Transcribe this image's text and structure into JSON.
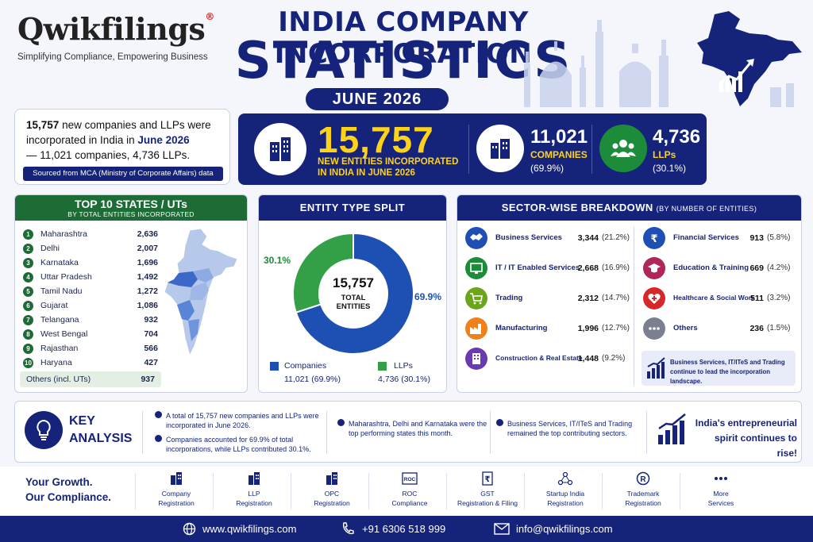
{
  "brand": {
    "logo": "Qwikfilings",
    "logo_mark": "®",
    "tagline": "Simplifying Compliance, Empowering Business"
  },
  "header": {
    "title_line1": "INDIA COMPANY INCORPORATION",
    "title_line2": "STATISTICS",
    "month": "JUNE 2026"
  },
  "summary": {
    "count": "15,757",
    "text_a": "new companies and LLPs were incorporated in India in",
    "month": "June 2026",
    "text_b": "— 11,021 companies, 4,736 LLPs.",
    "source": "Sourced from MCA (Ministry of Corporate Affairs) data"
  },
  "hero": {
    "total": "15,757",
    "total_label": "NEW ENTITIES INCORPORATED IN INDIA IN JUNE 2026",
    "companies_value": "11,021",
    "companies_label": "COMPANIES",
    "companies_pct": "(69.9%)",
    "llps_value": "4,736",
    "llps_label": "LLPs",
    "llps_pct": "(30.1%)"
  },
  "states_panel": {
    "title": "TOP 10 STATES / UTs",
    "subtitle": "BY TOTAL ENTITIES INCORPORATED",
    "others_label": "Others (incl. UTs)",
    "others_value": "937"
  },
  "entity_panel": {
    "title": "ENTITY TYPE SPLIT",
    "center_value": "15,757",
    "center_label_1": "TOTAL",
    "center_label_2": "ENTITIES",
    "companies_label": "Companies",
    "companies_detail": "11,021 (69.9%)",
    "llps_label": "LLPs",
    "llps_detail": "4,736 (30.1%)"
  },
  "sector_panel": {
    "title": "SECTOR-WISE BREAKDOWN",
    "title_note": "(BY NUMBER OF ENTITIES)",
    "note": "Business Services, IT/ITeS and Trading continue to lead the incorporation landscape."
  },
  "chart_data": [
    {
      "type": "bar",
      "title": "TOP 10 STATES / UTs",
      "subtitle": "BY TOTAL ENTITIES INCORPORATED",
      "categories": [
        "Maharashtra",
        "Delhi",
        "Karnataka",
        "Uttar Pradesh",
        "Tamil Nadu",
        "Gujarat",
        "Telangana",
        "West Bengal",
        "Rajasthan",
        "Haryana"
      ],
      "values": [
        2636,
        2007,
        1696,
        1492,
        1272,
        1086,
        932,
        704,
        566,
        427
      ],
      "value_labels": [
        "2,636",
        "2,007",
        "1,696",
        "1,492",
        "1,272",
        "1,086",
        "932",
        "704",
        "566",
        "427"
      ],
      "ranks": [
        "1",
        "2",
        "3",
        "4",
        "5",
        "6",
        "7",
        "8",
        "9",
        "10"
      ]
    },
    {
      "type": "pie",
      "title": "ENTITY TYPE SPLIT",
      "categories": [
        "Companies",
        "LLPs"
      ],
      "values": [
        11021,
        4736
      ],
      "percent_labels": [
        "69.9%",
        "30.1%"
      ],
      "colors": [
        "#1e50b4",
        "#33a047"
      ]
    },
    {
      "type": "table",
      "title": "SECTOR-WISE BREAKDOWN",
      "rows": [
        {
          "sector": "Business Services",
          "value": "3,344",
          "pct": "(21.2%)",
          "icon": "handshake-icon",
          "color": "#1e50b4"
        },
        {
          "sector": "IT / IT Enabled Services",
          "value": "2,668",
          "pct": "(16.9%)",
          "icon": "monitor-icon",
          "color": "#1d8c3a"
        },
        {
          "sector": "Trading",
          "value": "2,312",
          "pct": "(14.7%)",
          "icon": "cart-icon",
          "color": "#6aa51c"
        },
        {
          "sector": "Manufacturing",
          "value": "1,996",
          "pct": "(12.7%)",
          "icon": "factory-icon",
          "color": "#f0801a"
        },
        {
          "sector": "Construction & Real Estate",
          "value": "1,448",
          "pct": "(9.2%)",
          "icon": "building-icon",
          "color": "#6a3ab0"
        },
        {
          "sector": "Financial Services",
          "value": "913",
          "pct": "(5.8%)",
          "icon": "rupee-icon",
          "color": "#1e50b4"
        },
        {
          "sector": "Education & Training",
          "value": "669",
          "pct": "(4.2%)",
          "icon": "graduation-cap-icon",
          "color": "#b0255a"
        },
        {
          "sector": "Healthcare & Social Work",
          "value": "511",
          "pct": "(3.2%)",
          "icon": "heart-icon",
          "color": "#d62828"
        },
        {
          "sector": "Others",
          "value": "236",
          "pct": "(1.5%)",
          "icon": "dots-icon",
          "color": "#7a8090"
        }
      ]
    }
  ],
  "analysis": {
    "title_1": "KEY",
    "title_2": "ANALYSIS",
    "b1": "A total of 15,757 new companies and LLPs were incorporated in June 2026.",
    "b2": "Companies accounted for 69.9% of total incorporations, while LLPs contributed 30.1%.",
    "b3": "Maharashtra, Delhi and Karnataka were the top performing states this month.",
    "b4": "Business Services, IT/ITeS and Trading remained the top contributing sectors.",
    "spirit": "India's entrepreneurial spirit continues to rise!"
  },
  "services": {
    "growth_1": "Your Growth.",
    "growth_2": "Our Compliance.",
    "items": [
      {
        "line1": "Company",
        "line2": "Registration",
        "icon": "building-icon"
      },
      {
        "line1": "LLP",
        "line2": "Registration",
        "icon": "building-icon"
      },
      {
        "line1": "OPC",
        "line2": "Registration",
        "icon": "building-icon"
      },
      {
        "line1": "ROC",
        "line2": "Compliance",
        "icon": "roc-icon"
      },
      {
        "line1": "GST",
        "line2": "Registration & Filing",
        "icon": "rupee-doc-icon"
      },
      {
        "line1": "Startup India",
        "line2": "Registration",
        "icon": "network-icon"
      },
      {
        "line1": "Trademark",
        "line2": "Registration",
        "icon": "registered-icon"
      },
      {
        "line1": "More",
        "line2": "Services",
        "icon": "dots-icon"
      }
    ],
    "roc_badge": "ROC"
  },
  "footer": {
    "website": "www.qwikfilings.com",
    "phone": "+91 6306 518 999",
    "email": "info@qwikfilings.com"
  }
}
